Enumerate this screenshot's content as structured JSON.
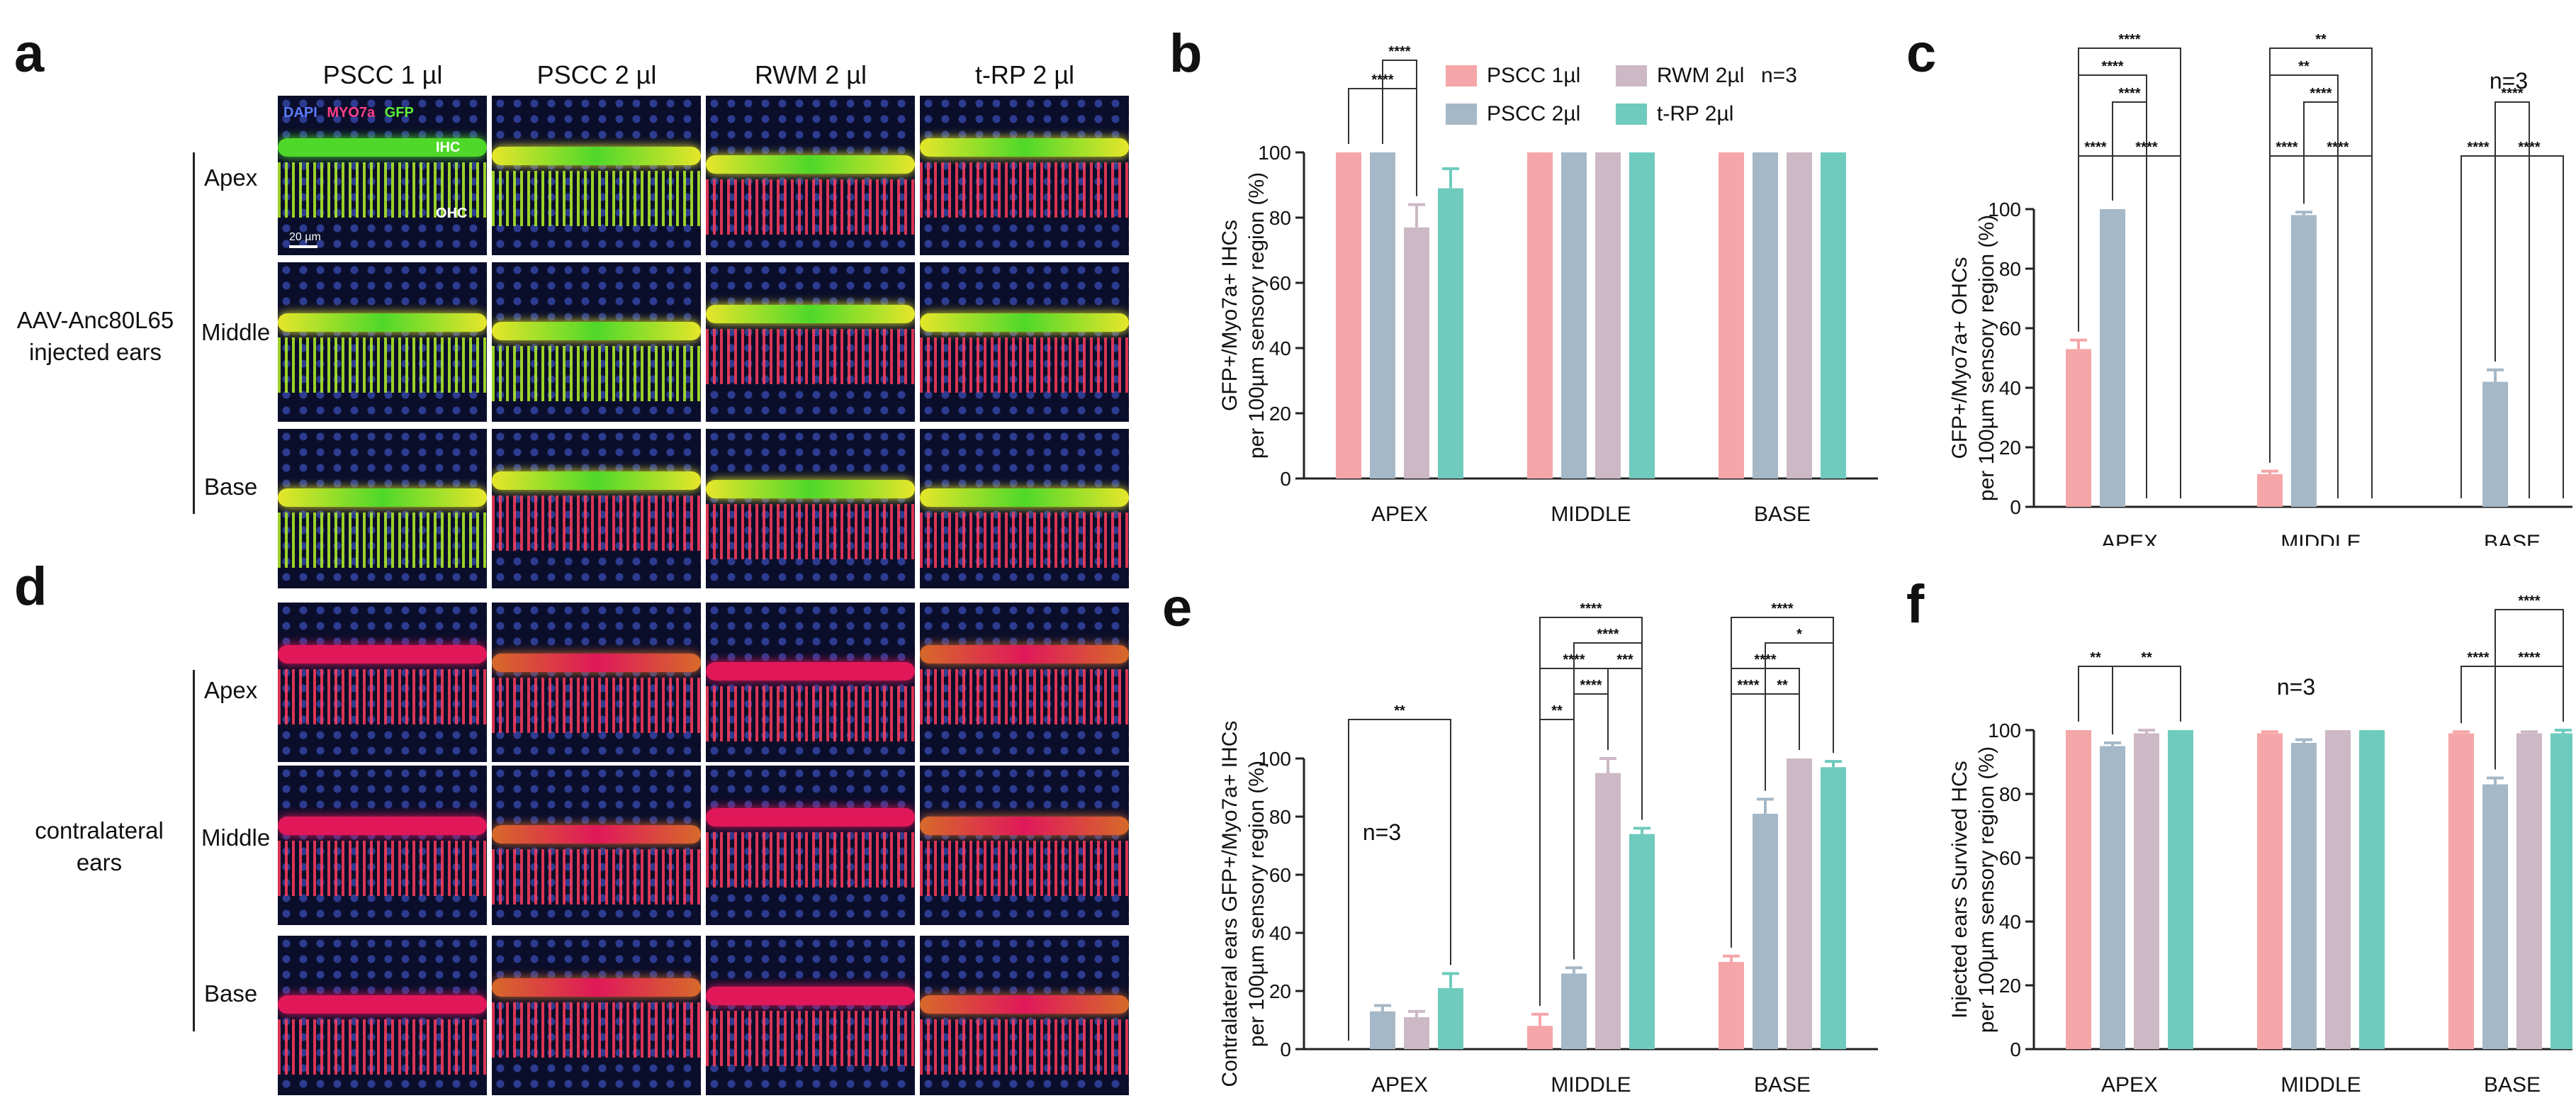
{
  "panels": {
    "a": "a",
    "b": "b",
    "c": "c",
    "d": "d",
    "e": "e",
    "f": "f"
  },
  "micrographs": {
    "columns": [
      "PSCC 1 µl",
      "PSCC 2 µl",
      "RWM 2 µl",
      "t-RP 2 µl"
    ],
    "rows": [
      "Apex",
      "Middle",
      "Base"
    ],
    "stain_labels": {
      "dapi": "DAPI",
      "myo7a": "MYO7a",
      "gfp": "GFP"
    },
    "cell_labels": {
      "ihc": "IHC",
      "ohc": "OHC"
    },
    "scale_bar": "20 µm",
    "group_injected": [
      "AAV-Anc80L65",
      "injected ears"
    ],
    "group_contralateral": [
      "contralateral",
      "ears"
    ],
    "colors": {
      "dapi": "#3f55c8",
      "myo7a": "#e0185a",
      "gfp": "#4fd82a",
      "merge": "#e6e62a"
    }
  },
  "legend": {
    "items": [
      "PSCC 1µl",
      "PSCC 2µl",
      "RWM 2µl",
      "t-RP 2µl"
    ],
    "n_label": "n=3",
    "colors": [
      "#f5a6a8",
      "#a5b8c7",
      "#cdb8c5",
      "#6fcbbd"
    ]
  },
  "chart_data": [
    {
      "id": "b",
      "type": "bar",
      "title": "",
      "ylabel": [
        "GFP+/Myo7a+ IHCs",
        "per 100µm sensory region (%)"
      ],
      "xlabel": "",
      "categories": [
        "APEX",
        "MIDDLE",
        "BASE"
      ],
      "ylim": [
        0,
        100
      ],
      "yticks": [
        0,
        20,
        40,
        60,
        80,
        100
      ],
      "series": [
        {
          "name": "PSCC 1µl",
          "values": [
            100,
            100,
            100
          ],
          "err": [
            0,
            0,
            0
          ]
        },
        {
          "name": "PSCC 2µl",
          "values": [
            100,
            100,
            100
          ],
          "err": [
            0,
            0,
            0
          ]
        },
        {
          "name": "RWM 2µl",
          "values": [
            77,
            100,
            100
          ],
          "err": [
            7,
            0,
            0
          ]
        },
        {
          "name": "t-RP 2µl",
          "values": [
            89,
            100,
            100
          ],
          "err": [
            6,
            0,
            0
          ]
        }
      ],
      "significance": [
        {
          "group": 0,
          "from": 0,
          "to": 2,
          "label": "****",
          "level": 0
        },
        {
          "group": 0,
          "from": 1,
          "to": 2,
          "label": "****",
          "level": 1
        }
      ]
    },
    {
      "id": "c",
      "type": "bar",
      "title": "",
      "annotation": "n=3",
      "ylabel": [
        "GFP+/Myo7a+ OHCs",
        "per 100µm sensory region (%)"
      ],
      "xlabel": "",
      "categories": [
        "APEX",
        "MIDDLE",
        "BASE"
      ],
      "ylim": [
        0,
        100
      ],
      "yticks": [
        0,
        20,
        40,
        60,
        80,
        100
      ],
      "series": [
        {
          "name": "PSCC 1µl",
          "values": [
            53,
            11,
            0
          ],
          "err": [
            3,
            1,
            0
          ]
        },
        {
          "name": "PSCC 2µl",
          "values": [
            100,
            98,
            42
          ],
          "err": [
            0,
            1,
            4
          ]
        },
        {
          "name": "RWM 2µl",
          "values": [
            0,
            0,
            0
          ],
          "err": [
            0,
            0,
            0
          ]
        },
        {
          "name": "t-RP 2µl",
          "values": [
            0,
            0,
            0
          ],
          "err": [
            0,
            0,
            0
          ]
        }
      ],
      "significance": [
        {
          "group": 0,
          "from": 0,
          "to": 3,
          "label": "****",
          "level": 4
        },
        {
          "group": 0,
          "from": 0,
          "to": 2,
          "label": "****",
          "level": 3
        },
        {
          "group": 0,
          "from": 1,
          "to": 2,
          "label": "****",
          "level": 2
        },
        {
          "group": 0,
          "from": 0,
          "to": 1,
          "label": "****",
          "level": 0
        },
        {
          "group": 0,
          "from": 1,
          "to": 3,
          "label": "****",
          "level": 0
        },
        {
          "group": 1,
          "from": 0,
          "to": 3,
          "label": "**",
          "level": 4
        },
        {
          "group": 1,
          "from": 0,
          "to": 2,
          "label": "**",
          "level": 3
        },
        {
          "group": 1,
          "from": 1,
          "to": 2,
          "label": "****",
          "level": 2
        },
        {
          "group": 1,
          "from": 0,
          "to": 1,
          "label": "****",
          "level": 0
        },
        {
          "group": 1,
          "from": 1,
          "to": 3,
          "label": "****",
          "level": 0
        },
        {
          "group": 2,
          "from": 1,
          "to": 2,
          "label": "****",
          "level": 2
        },
        {
          "group": 2,
          "from": 0,
          "to": 1,
          "label": "****",
          "level": 0
        },
        {
          "group": 2,
          "from": 1,
          "to": 3,
          "label": "****",
          "level": 0
        }
      ]
    },
    {
      "id": "e",
      "type": "bar",
      "title": "",
      "annotation": "n=3",
      "ylabel": [
        "Contralateral ears GFP+/Myo7a+ IHCs",
        "per 100µm sensory region (%)"
      ],
      "xlabel": "",
      "categories": [
        "APEX",
        "MIDDLE",
        "BASE"
      ],
      "ylim": [
        0,
        100
      ],
      "yticks": [
        0,
        20,
        40,
        60,
        80,
        100
      ],
      "series": [
        {
          "name": "PSCC 1µl",
          "values": [
            0,
            8,
            30
          ],
          "err": [
            0,
            4,
            2
          ]
        },
        {
          "name": "PSCC 2µl",
          "values": [
            13,
            26,
            81
          ],
          "err": [
            2,
            2,
            5
          ]
        },
        {
          "name": "RWM 2µl",
          "values": [
            11,
            95,
            100
          ],
          "err": [
            2,
            5,
            0
          ]
        },
        {
          "name": "t-RP 2µl",
          "values": [
            21,
            74,
            97
          ],
          "err": [
            5,
            2,
            2
          ]
        }
      ],
      "significance": [
        {
          "group": 0,
          "from": 0,
          "to": 3,
          "label": "**",
          "level": 0
        },
        {
          "group": 1,
          "from": 0,
          "to": 3,
          "label": "****",
          "level": 4
        },
        {
          "group": 1,
          "from": 1,
          "to": 3,
          "label": "****",
          "level": 3
        },
        {
          "group": 1,
          "from": 0,
          "to": 2,
          "label": "****",
          "level": 2
        },
        {
          "group": 1,
          "from": 2,
          "to": 3,
          "label": "***",
          "level": 2
        },
        {
          "group": 1,
          "from": 1,
          "to": 2,
          "label": "****",
          "level": 1
        },
        {
          "group": 1,
          "from": 0,
          "to": 1,
          "label": "**",
          "level": 0
        },
        {
          "group": 2,
          "from": 0,
          "to": 3,
          "label": "****",
          "level": 4
        },
        {
          "group": 2,
          "from": 1,
          "to": 3,
          "label": "*",
          "level": 3
        },
        {
          "group": 2,
          "from": 0,
          "to": 2,
          "label": "****",
          "level": 2
        },
        {
          "group": 2,
          "from": 0,
          "to": 1,
          "label": "****",
          "level": 1
        },
        {
          "group": 2,
          "from": 1,
          "to": 2,
          "label": "**",
          "level": 1
        }
      ]
    },
    {
      "id": "f",
      "type": "bar",
      "title": "",
      "annotation": "n=3",
      "ylabel": [
        "Injected ears Survived HCs",
        "per 100µm sensory region (%)"
      ],
      "xlabel": "",
      "categories": [
        "APEX",
        "MIDDLE",
        "BASE"
      ],
      "ylim": [
        0,
        100
      ],
      "yticks": [
        0,
        20,
        40,
        60,
        80,
        100
      ],
      "series": [
        {
          "name": "PSCC 1µl",
          "values": [
            100,
            99,
            99
          ],
          "err": [
            0,
            0.5,
            0.5
          ]
        },
        {
          "name": "PSCC 2µl",
          "values": [
            95,
            96,
            83
          ],
          "err": [
            1,
            1,
            2
          ]
        },
        {
          "name": "RWM 2µl",
          "values": [
            99,
            100,
            99
          ],
          "err": [
            1,
            0,
            0.5
          ]
        },
        {
          "name": "t-RP 2µl",
          "values": [
            100,
            100,
            99
          ],
          "err": [
            0,
            0,
            1
          ]
        }
      ],
      "significance": [
        {
          "group": 0,
          "from": 0,
          "to": 1,
          "label": "**",
          "level": 0
        },
        {
          "group": 0,
          "from": 1,
          "to": 3,
          "label": "**",
          "level": 0
        },
        {
          "group": 2,
          "from": 1,
          "to": 3,
          "label": "****",
          "level": 2
        },
        {
          "group": 2,
          "from": 0,
          "to": 1,
          "label": "****",
          "level": 0
        },
        {
          "group": 2,
          "from": 1,
          "to": 3,
          "label": "****",
          "level": 0
        }
      ]
    }
  ]
}
